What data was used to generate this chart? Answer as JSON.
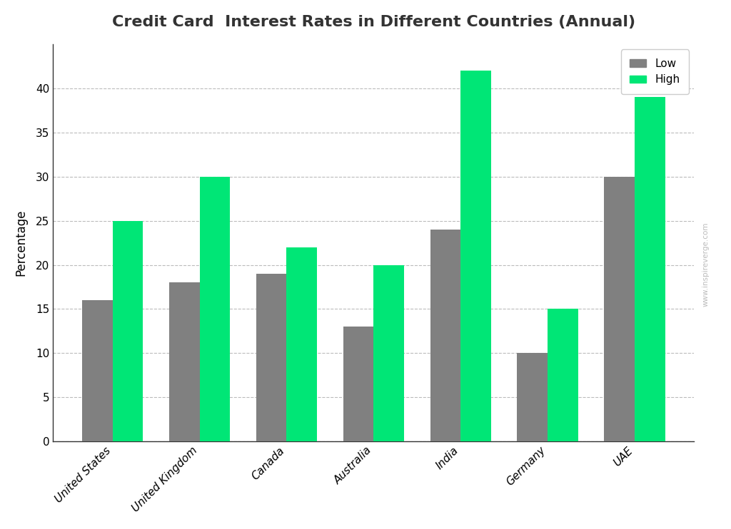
{
  "title": "Credit Card  Interest Rates in Different Countries (Annual)",
  "ylabel": "Percentage",
  "categories": [
    "United States",
    "United Kingdom",
    "Canada",
    "Australia",
    "India",
    "Germany",
    "UAE"
  ],
  "low_values": [
    16,
    18,
    19,
    13,
    24,
    10,
    30
  ],
  "high_values": [
    25,
    30,
    22,
    20,
    42,
    15,
    39
  ],
  "low_color": "#808080",
  "high_color": "#00e676",
  "background_color": "#ffffff",
  "plot_bg_color": "#ffffff",
  "ylim": [
    0,
    45
  ],
  "yticks": [
    0,
    5,
    10,
    15,
    20,
    25,
    30,
    35,
    40
  ],
  "bar_width": 0.35,
  "legend_labels": [
    "Low",
    "High"
  ],
  "title_fontsize": 16,
  "axis_label_fontsize": 12,
  "tick_fontsize": 11,
  "legend_fontsize": 11,
  "grid_color": "#bbbbbb",
  "grid_style": "--",
  "watermark": "www.inspireverge.com"
}
